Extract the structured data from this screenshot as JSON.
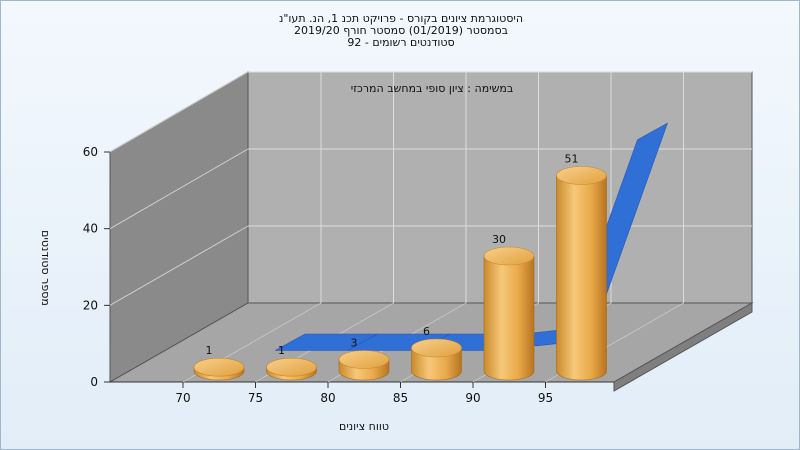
{
  "chart_data": {
    "type": "bar",
    "title_lines": [
      "היסטוגרמת ציונים בקורס - פרויקט תכנ 1, הנ. תעו\"נ",
      "בסמסטר  (01/2019)  סמסטר חורף 2019/20",
      "סטודנטים רשומים - 92"
    ],
    "subtitle": "במשימה : ציון סופי במחשב המרכזי",
    "xlabel": "טווח ציונים",
    "ylabel": "מספר סטודנטים",
    "x_ticks": [
      "70",
      "75",
      "80",
      "85",
      "90",
      "95"
    ],
    "y_ticks": [
      "0",
      "20",
      "40",
      "60"
    ],
    "ylim": [
      0,
      60
    ],
    "values": [
      1,
      1,
      3,
      6,
      30,
      51
    ],
    "bar_labels": [
      "1",
      "1",
      "3",
      "6",
      "30",
      "51"
    ],
    "line_values": [
      0,
      0,
      0,
      0,
      2,
      55
    ],
    "colors": {
      "bar": "#e8a848",
      "line": "#2f6fd6",
      "wall_left": "#8a8a8a",
      "wall_back": "#b0b0b0",
      "floor": "#a8a8a8"
    }
  }
}
